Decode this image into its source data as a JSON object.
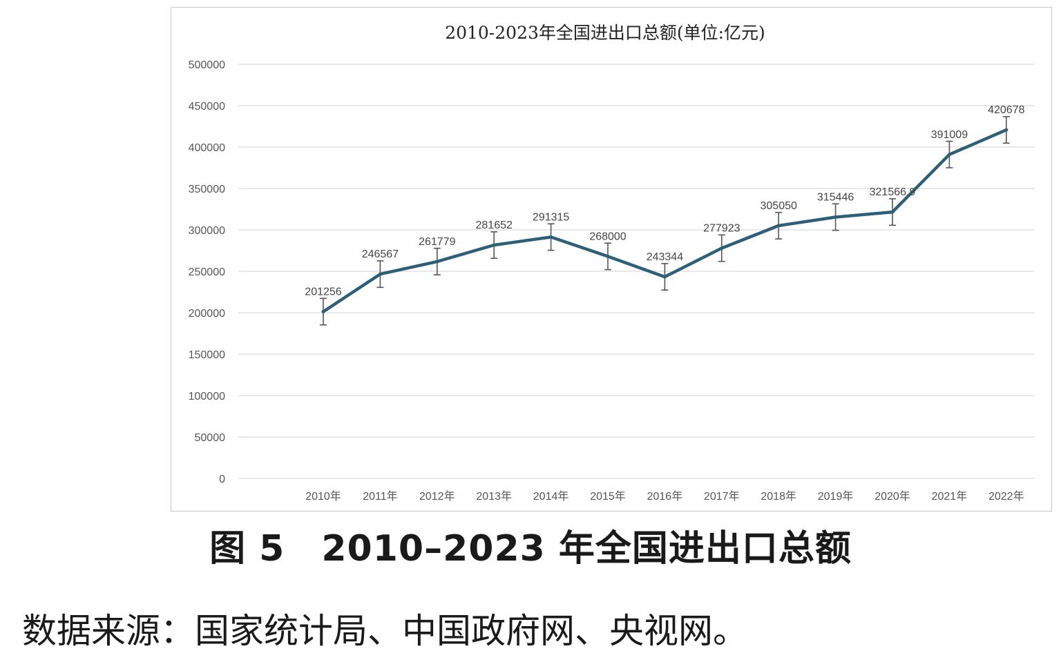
{
  "chart_data": {
    "type": "line",
    "title": "2010-2023年全国进出口总额(单位:亿元)",
    "categories": [
      "2010年",
      "2011年",
      "2012年",
      "2013年",
      "2014年",
      "2015年",
      "2016年",
      "2017年",
      "2018年",
      "2019年",
      "2020年",
      "2021年",
      "2022年"
    ],
    "values": [
      201256,
      246567,
      261779,
      281652,
      291315,
      268000,
      243344,
      277923,
      305050,
      315446,
      321566.9,
      391009,
      420678
    ],
    "value_labels": [
      "201256",
      "246567",
      "261779",
      "281652",
      "291315",
      "268000",
      "243344",
      "277923",
      "305050",
      "315446",
      "321566.9",
      "391009",
      "420678"
    ],
    "error_bar": 16000,
    "ylim": [
      0,
      500000
    ],
    "yticks": [
      0,
      50000,
      100000,
      150000,
      200000,
      250000,
      300000,
      350000,
      400000,
      450000,
      500000
    ],
    "ytick_labels": [
      "0",
      "50000",
      "100000",
      "150000",
      "200000",
      "250000",
      "300000",
      "350000",
      "400000",
      "450000",
      "500000"
    ],
    "grid": true,
    "line_color": "#2e5f78",
    "error_color": "#555555"
  },
  "caption": "图 5　2010–2023 年全国进出口总额",
  "source": "数据来源：国家统计局、中国政府网、央视网。"
}
